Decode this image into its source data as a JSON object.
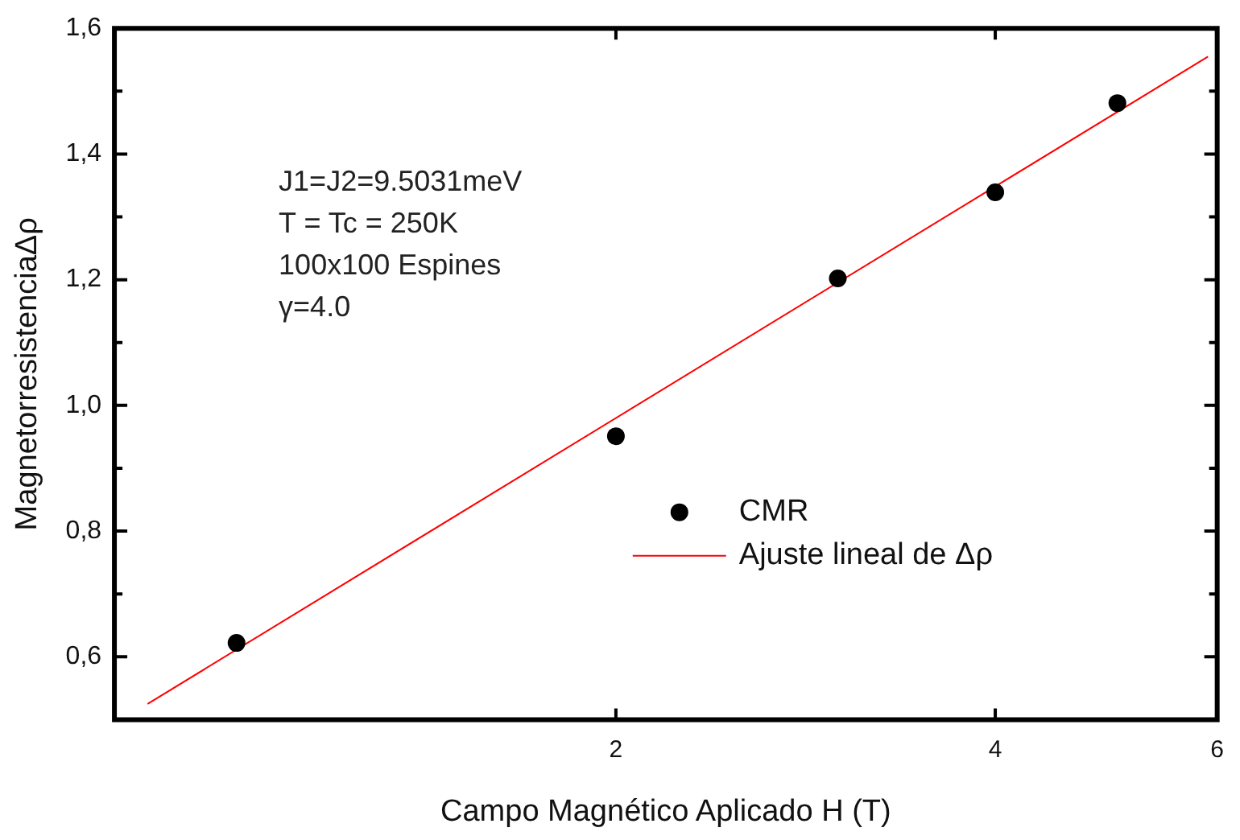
{
  "chart_data": {
    "type": "scatter",
    "xlabel": "Campo Magnético Aplicado H (T)",
    "ylabel": "MagnetorresistenciaΔρ",
    "log": "x",
    "grid": false,
    "legend": "right",
    "marker": "circle",
    "xlim": [
      0.8,
      6
    ],
    "xticks": [
      2,
      4,
      6
    ],
    "ylim": [
      0.5,
      1.6
    ],
    "yticks": [
      {
        "value": 0.6,
        "label": "0,6"
      },
      {
        "value": 0.7,
        "label": null
      },
      {
        "value": 0.8,
        "label": "0,8"
      },
      {
        "value": 0.9,
        "label": null
      },
      {
        "value": 1.0,
        "label": "1,0"
      },
      {
        "value": 1.1,
        "label": null
      },
      {
        "value": 1.2,
        "label": "1,2"
      },
      {
        "value": 1.3,
        "label": null
      },
      {
        "value": 1.4,
        "label": "1,4"
      },
      {
        "value": 1.5,
        "label": null
      },
      {
        "value": 1.6,
        "label": "1,6"
      }
    ],
    "annotations": [
      "J1=J2=9.5031meV",
      "T = Tc = 250K",
      "100x100 Espines",
      "γ=4.0"
    ],
    "series": [
      {
        "name": "CMR",
        "type": "scatter",
        "color": "#000000",
        "x": [
          1,
          2,
          3,
          4,
          5
        ],
        "values": [
          0.622,
          0.951,
          1.202,
          1.339,
          1.481
        ]
      },
      {
        "name": "Ajuste lineal de Δρ",
        "type": "line",
        "color": "#ff0000",
        "marker": "none",
        "x": [
          0.85,
          5.9
        ],
        "values": [
          0.525,
          1.555
        ]
      }
    ]
  }
}
